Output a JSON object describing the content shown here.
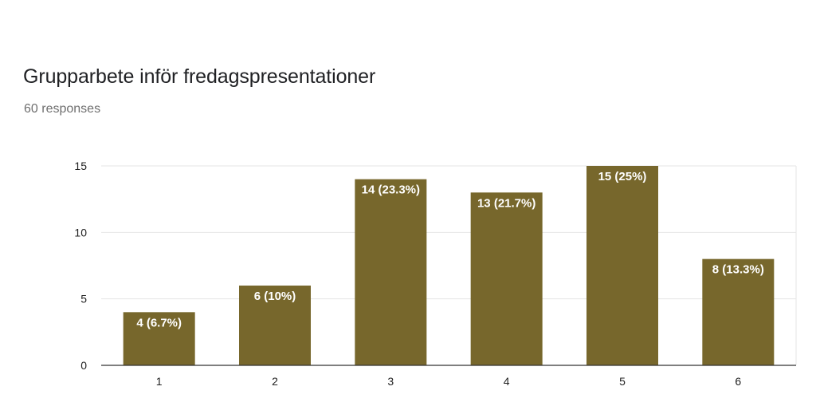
{
  "title": "Grupparbete inför fredagspresentationer",
  "subtitle": "60 responses",
  "colors": {
    "bar": "#77672c",
    "grid": "#e6e6e6",
    "axis": "#333333"
  },
  "chart_data": {
    "type": "bar",
    "categories": [
      "1",
      "2",
      "3",
      "4",
      "5",
      "6"
    ],
    "values": [
      4,
      6,
      14,
      13,
      15,
      8
    ],
    "data_labels": [
      "4 (6.7%)",
      "6 (10%)",
      "14 (23.3%)",
      "13 (21.7%)",
      "15 (25%)",
      "8 (13.3%)"
    ],
    "y_ticks": [
      "0",
      "5",
      "10",
      "15"
    ],
    "ylim": [
      0,
      15
    ],
    "grid": true,
    "legend": "none"
  }
}
